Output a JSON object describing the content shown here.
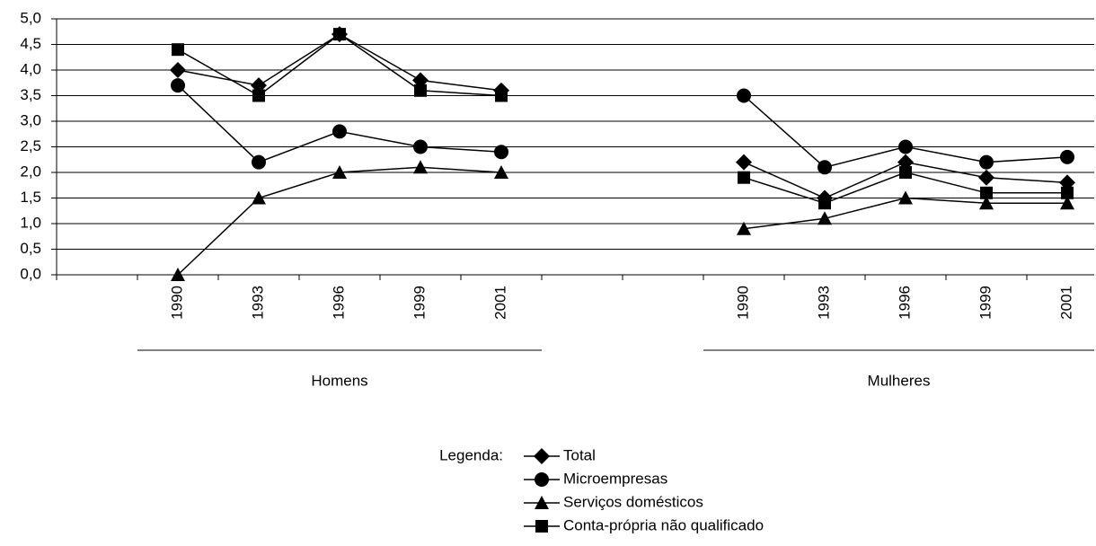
{
  "chart_data": {
    "type": "line",
    "categories": [
      null,
      "1990",
      "1993",
      "1996",
      "1999",
      "2001",
      null,
      null,
      "1990",
      "1993",
      "1996",
      "1999",
      "2001"
    ],
    "groups": [
      "Homens",
      "Mulheres"
    ],
    "series": [
      {
        "name": "Total",
        "color": "#000000",
        "marker": "diamond",
        "values": [
          null,
          4.0,
          3.7,
          4.7,
          3.8,
          3.6,
          null,
          null,
          2.2,
          1.5,
          2.2,
          1.9,
          1.8
        ]
      },
      {
        "name": "Microempresas",
        "color": "#000000",
        "marker": "circle",
        "values": [
          null,
          3.7,
          2.2,
          2.8,
          2.5,
          2.4,
          null,
          null,
          3.5,
          2.1,
          2.5,
          2.2,
          2.3
        ]
      },
      {
        "name": "Serviços domésticos",
        "color": "#000000",
        "marker": "triangle",
        "values": [
          null,
          0.0,
          1.5,
          2.0,
          2.1,
          2.0,
          null,
          null,
          0.9,
          1.1,
          1.5,
          1.4,
          1.4
        ]
      },
      {
        "name": "Conta-própria não qualificado",
        "color": "#000000",
        "marker": "square",
        "values": [
          null,
          4.4,
          3.5,
          4.7,
          3.6,
          3.5,
          null,
          null,
          1.9,
          1.4,
          2.0,
          1.6,
          1.6
        ]
      }
    ],
    "ylim": [
      0,
      5
    ],
    "yticks": [
      {
        "value": 0,
        "label": "0,0"
      },
      {
        "value": 0.5,
        "label": "0,5"
      },
      {
        "value": 1,
        "label": "1,0"
      },
      {
        "value": 1.5,
        "label": "1,5"
      },
      {
        "value": 2,
        "label": "2,0"
      },
      {
        "value": 2.5,
        "label": "2,5"
      },
      {
        "value": 3,
        "label": "3,0"
      },
      {
        "value": 3.5,
        "label": "3,5"
      },
      {
        "value": 4,
        "label": "4,0"
      },
      {
        "value": 4.5,
        "label": "4,5"
      },
      {
        "value": 5,
        "label": "5,0"
      }
    ],
    "grid": true,
    "legend_title": "Legenda:"
  }
}
